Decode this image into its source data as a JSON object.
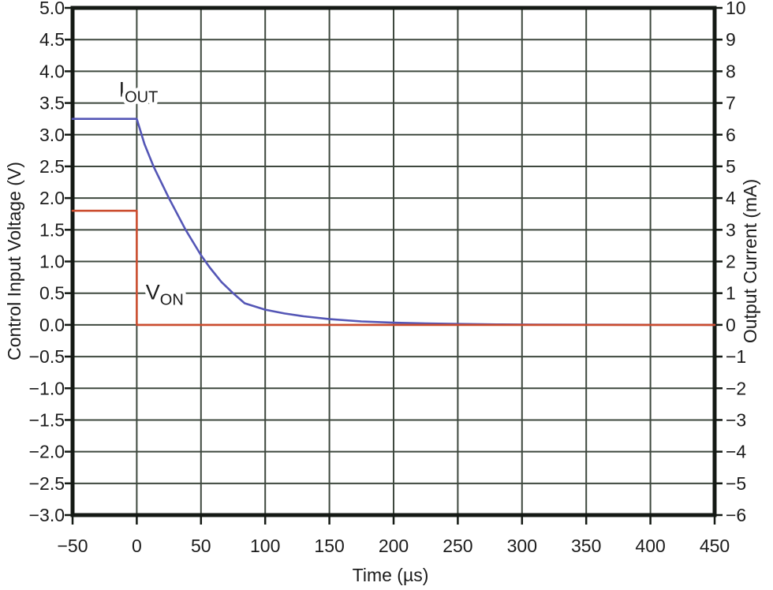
{
  "chart_data": {
    "type": "line",
    "title": "",
    "xlabel": "Time (µs)",
    "ylabel_left": "Control Input Voltage (V)",
    "ylabel_right": "Output Current (mA)",
    "x_range": [
      -50,
      450
    ],
    "y_left_range": [
      -3.0,
      5.0
    ],
    "y_right_range": [
      -6,
      10
    ],
    "grid": true,
    "x_ticks": [
      {
        "v": -50,
        "label": "−50"
      },
      {
        "v": 0,
        "label": "0"
      },
      {
        "v": 50,
        "label": "50"
      },
      {
        "v": 100,
        "label": "100"
      },
      {
        "v": 150,
        "label": "150"
      },
      {
        "v": 200,
        "label": "200"
      },
      {
        "v": 250,
        "label": "250"
      },
      {
        "v": 300,
        "label": "300"
      },
      {
        "v": 350,
        "label": "350"
      },
      {
        "v": 400,
        "label": "400"
      },
      {
        "v": 450,
        "label": "450"
      }
    ],
    "y_left_ticks": [
      {
        "v": 5.0,
        "label": "5.0"
      },
      {
        "v": 4.5,
        "label": "4.5"
      },
      {
        "v": 4.0,
        "label": "4.0"
      },
      {
        "v": 3.5,
        "label": "3.5"
      },
      {
        "v": 3.0,
        "label": "3.0"
      },
      {
        "v": 2.5,
        "label": "2.5"
      },
      {
        "v": 2.0,
        "label": "2.0"
      },
      {
        "v": 1.5,
        "label": "1.5"
      },
      {
        "v": 1.0,
        "label": "1.0"
      },
      {
        "v": 0.5,
        "label": "0.5"
      },
      {
        "v": 0.0,
        "label": "0.0"
      },
      {
        "v": -0.5,
        "label": "−0.5"
      },
      {
        "v": -1.0,
        "label": "−1.0"
      },
      {
        "v": -1.5,
        "label": "−1.5"
      },
      {
        "v": -2.0,
        "label": "−2.0"
      },
      {
        "v": -2.5,
        "label": "−2.5"
      },
      {
        "v": -3.0,
        "label": "−3.0"
      }
    ],
    "y_right_ticks": [
      {
        "v": 10,
        "label": "10"
      },
      {
        "v": 9,
        "label": "9"
      },
      {
        "v": 8,
        "label": "8"
      },
      {
        "v": 7,
        "label": "7"
      },
      {
        "v": 6,
        "label": "6"
      },
      {
        "v": 5,
        "label": "5"
      },
      {
        "v": 4,
        "label": "4"
      },
      {
        "v": 3,
        "label": "3"
      },
      {
        "v": 2,
        "label": "2"
      },
      {
        "v": 1,
        "label": "1"
      },
      {
        "v": 0,
        "label": "0"
      },
      {
        "v": -1,
        "label": "−1"
      },
      {
        "v": -2,
        "label": "−2"
      },
      {
        "v": -3,
        "label": "−3"
      },
      {
        "v": -4,
        "label": "−4"
      },
      {
        "v": -5,
        "label": "−5"
      },
      {
        "v": -6,
        "label": "−6"
      }
    ],
    "series": [
      {
        "name": "IOUT",
        "axis": "right",
        "color": "#5456b6",
        "label_main": "I",
        "label_sub": "OUT",
        "label_pos": {
          "t": -14,
          "v_left": 3.6
        },
        "points": [
          [
            -50,
            6.5
          ],
          [
            0,
            6.5
          ],
          [
            6,
            5.7
          ],
          [
            13,
            5.0
          ],
          [
            25,
            4.0
          ],
          [
            38,
            3.0
          ],
          [
            50,
            2.2
          ],
          [
            57,
            1.8
          ],
          [
            66,
            1.35
          ],
          [
            75,
            1.0
          ],
          [
            84,
            0.68
          ],
          [
            100,
            0.48
          ],
          [
            115,
            0.36
          ],
          [
            130,
            0.27
          ],
          [
            150,
            0.18
          ],
          [
            175,
            0.11
          ],
          [
            200,
            0.07
          ],
          [
            225,
            0.045
          ],
          [
            250,
            0.03
          ],
          [
            280,
            0.015
          ],
          [
            310,
            0.008
          ],
          [
            350,
            0.004
          ],
          [
            400,
            0.002
          ],
          [
            450,
            0
          ]
        ]
      },
      {
        "name": "VON",
        "axis": "left",
        "color": "#cb4c2e",
        "label_main": "V",
        "label_sub": "ON",
        "label_pos": {
          "t": 7,
          "v_left": 0.4
        },
        "points": [
          [
            -50,
            1.8
          ],
          [
            0,
            1.8
          ],
          [
            0,
            0
          ],
          [
            450,
            0
          ]
        ]
      }
    ],
    "legend": "none"
  },
  "colors": {
    "background": "#ffffff",
    "grid": "#3e483e",
    "frame": "#141914",
    "text": "#1c1c1c",
    "iout_line": "#5456b6",
    "von_line": "#cb4c2e"
  }
}
